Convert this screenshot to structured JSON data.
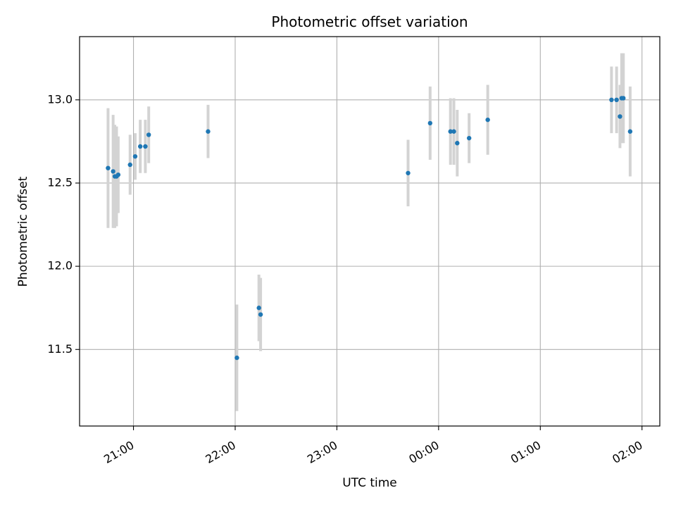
{
  "chart_data": {
    "type": "scatter",
    "title": "Photometric offset variation",
    "xlabel": "UTC time",
    "ylabel": "Photometric offset",
    "x_tick_labels": [
      "21:00",
      "22:00",
      "23:00",
      "00:00",
      "01:00",
      "02:00"
    ],
    "y_tick_labels": [
      "11.5",
      "12.0",
      "12.5",
      "13.0"
    ],
    "y_ticks": [
      11.5,
      12.0,
      12.5,
      13.0
    ],
    "x_ticks_minutes": [
      0,
      60,
      120,
      180,
      240,
      300
    ],
    "xlim_minutes": [
      -31.8,
      310.5
    ],
    "ylim": [
      11.04,
      13.38
    ],
    "grid": true,
    "colors": {
      "marker": "#1f77b4",
      "errorbar": "#d3d3d3",
      "grid": "#b0b0b0",
      "axes": "#000000"
    },
    "points": [
      {
        "t": "20:45",
        "y": 12.59,
        "err": 0.36
      },
      {
        "t": "20:48",
        "y": 12.57,
        "err": 0.34
      },
      {
        "t": "20:49",
        "y": 12.54,
        "err": 0.31
      },
      {
        "t": "20:50",
        "y": 12.54,
        "err": 0.3
      },
      {
        "t": "20:51",
        "y": 12.55,
        "err": 0.23
      },
      {
        "t": "20:58",
        "y": 12.61,
        "err": 0.18
      },
      {
        "t": "21:01",
        "y": 12.66,
        "err": 0.14
      },
      {
        "t": "21:04",
        "y": 12.72,
        "err": 0.16
      },
      {
        "t": "21:07",
        "y": 12.72,
        "err": 0.16
      },
      {
        "t": "21:09",
        "y": 12.79,
        "err": 0.17
      },
      {
        "t": "21:44",
        "y": 12.81,
        "err": 0.16
      },
      {
        "t": "22:01",
        "y": 11.45,
        "err": 0.32
      },
      {
        "t": "22:14",
        "y": 11.75,
        "err": 0.2
      },
      {
        "t": "22:15",
        "y": 11.71,
        "err": 0.22
      },
      {
        "t": "23:42",
        "y": 12.56,
        "err": 0.2
      },
      {
        "t": "23:55",
        "y": 12.86,
        "err": 0.22
      },
      {
        "t": "00:07",
        "y": 12.81,
        "err": 0.2
      },
      {
        "t": "00:09",
        "y": 12.81,
        "err": 0.2
      },
      {
        "t": "00:11",
        "y": 12.74,
        "err": 0.2
      },
      {
        "t": "00:18",
        "y": 12.77,
        "err": 0.15
      },
      {
        "t": "00:29",
        "y": 12.88,
        "err": 0.21
      },
      {
        "t": "01:42",
        "y": 13.0,
        "err": 0.2
      },
      {
        "t": "01:45",
        "y": 13.0,
        "err": 0.2
      },
      {
        "t": "01:47",
        "y": 12.9,
        "err": 0.19
      },
      {
        "t": "01:48",
        "y": 13.01,
        "err": 0.27
      },
      {
        "t": "01:49",
        "y": 13.01,
        "err": 0.27
      },
      {
        "t": "01:53",
        "y": 12.81,
        "err": 0.27
      }
    ]
  }
}
